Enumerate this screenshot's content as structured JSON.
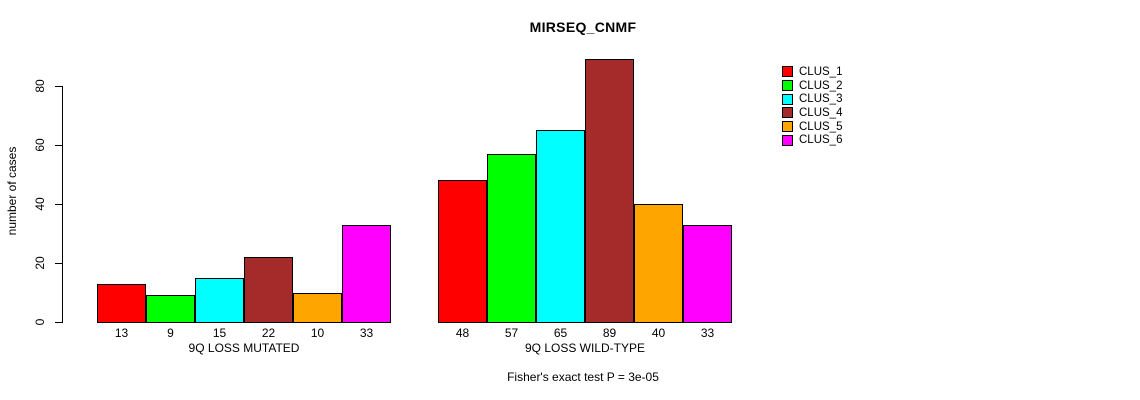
{
  "title": "MIRSEQ_CNMF",
  "y_axis": {
    "label": "number of cases",
    "ticks": [
      0,
      20,
      40,
      60,
      80
    ]
  },
  "footnote": "Fisher's exact test P = 3e-05",
  "legend": {
    "position": "right-outside"
  },
  "chart_data": {
    "type": "bar",
    "title": "MIRSEQ_CNMF",
    "xlabel": "",
    "ylabel": "number of cases",
    "ylim": [
      0,
      93
    ],
    "yticks": [
      0,
      20,
      40,
      60,
      80
    ],
    "grid": false,
    "legend_position": "right-outside",
    "bar_borders": "black",
    "show_value_labels": true,
    "categories": [
      "9Q LOSS MUTATED",
      "9Q LOSS WILD-TYPE"
    ],
    "series": [
      {
        "name": "CLUS_1",
        "color": "#FF0000",
        "values": [
          13,
          48
        ]
      },
      {
        "name": "CLUS_2",
        "color": "#00FF00",
        "values": [
          9,
          57
        ]
      },
      {
        "name": "CLUS_3",
        "color": "#00FFFF",
        "values": [
          15,
          65
        ]
      },
      {
        "name": "CLUS_4",
        "color": "#A52A2A",
        "values": [
          22,
          89
        ]
      },
      {
        "name": "CLUS_5",
        "color": "#FFA500",
        "values": [
          10,
          40
        ]
      },
      {
        "name": "CLUS_6",
        "color": "#FF00FF",
        "values": [
          33,
          33
        ]
      }
    ],
    "annotation": "Fisher's exact test P = 3e-05"
  }
}
